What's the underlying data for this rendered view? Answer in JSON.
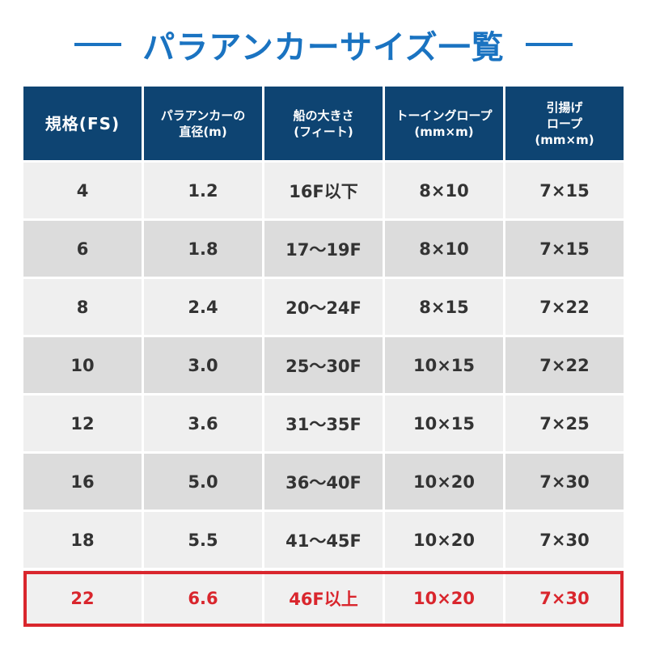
{
  "title": "パラアンカーサイズ一覧",
  "colors": {
    "accent": "#1a73c1",
    "header_bg": "#0e4472",
    "highlight": "#d9262d"
  },
  "headers": [
    [
      "規格(FS)"
    ],
    [
      "パラアンカーの",
      "直径(m)"
    ],
    [
      "船の大きさ",
      "(フィート)"
    ],
    [
      "トーイングロープ",
      "(mm×m)"
    ],
    [
      "引揚げ",
      "ロープ",
      "(mm×m)"
    ]
  ],
  "rows": [
    [
      "4",
      "1.2",
      "16F以下",
      "8×10",
      "7×15"
    ],
    [
      "6",
      "1.8",
      "17〜19F",
      "8×10",
      "7×15"
    ],
    [
      "8",
      "2.4",
      "20〜24F",
      "8×15",
      "7×22"
    ],
    [
      "10",
      "3.0",
      "25〜30F",
      "10×15",
      "7×22"
    ],
    [
      "12",
      "3.6",
      "31〜35F",
      "10×15",
      "7×25"
    ],
    [
      "16",
      "5.0",
      "36〜40F",
      "10×20",
      "7×30"
    ],
    [
      "18",
      "5.5",
      "41〜45F",
      "10×20",
      "7×30"
    ],
    [
      "22",
      "6.6",
      "46F以上",
      "10×20",
      "7×30"
    ]
  ]
}
